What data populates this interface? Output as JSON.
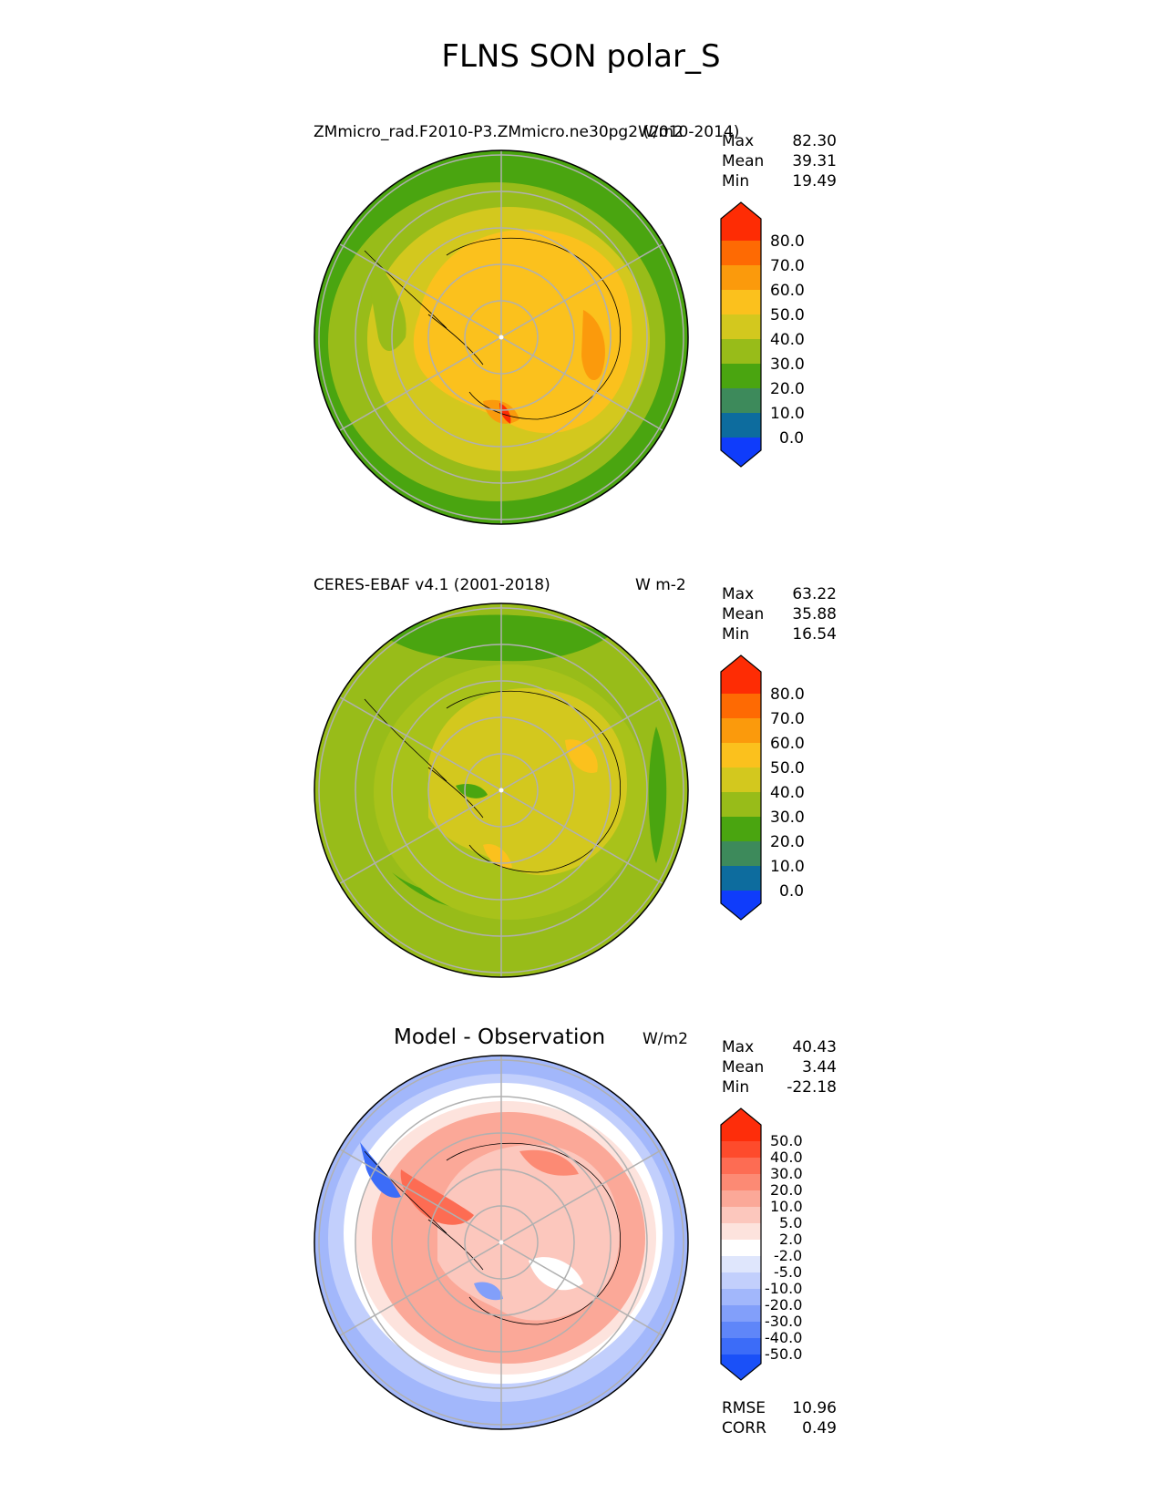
{
  "figure_title": "FLNS SON polar_S",
  "chart_data": [
    {
      "type": "heatmap",
      "projection": "south polar stereographic",
      "title": "ZMmicro_rad.F2010-P3.ZMmicro.ne30pg2 (2010-2014)",
      "units": "W/m2",
      "stats": {
        "max_label": "Max",
        "max": "82.30",
        "mean_label": "Mean",
        "mean": "39.31",
        "min_label": "Min",
        "min": "19.49"
      },
      "colorbar": {
        "ticks": [
          "80.0",
          "70.0",
          "60.0",
          "50.0",
          "40.0",
          "30.0",
          "20.0",
          "10.0",
          "0.0"
        ],
        "colors": [
          "#fe2c04",
          "#fe6a03",
          "#fb9a0c",
          "#fbc11d",
          "#d3c81e",
          "#98bc19",
          "#4aa510",
          "#3d8a5b",
          "#0d6c9e",
          "#0f3cfb"
        ],
        "extend": "both"
      }
    },
    {
      "type": "heatmap",
      "projection": "south polar stereographic",
      "title": "CERES-EBAF v4.1 (2001-2018)",
      "units": "W m-2",
      "stats": {
        "max_label": "Max",
        "max": "63.22",
        "mean_label": "Mean",
        "mean": "35.88",
        "min_label": "Min",
        "min": "16.54"
      },
      "colorbar": {
        "ticks": [
          "80.0",
          "70.0",
          "60.0",
          "50.0",
          "40.0",
          "30.0",
          "20.0",
          "10.0",
          "0.0"
        ],
        "colors": [
          "#fe2c04",
          "#fe6a03",
          "#fb9a0c",
          "#fbc11d",
          "#d3c81e",
          "#98bc19",
          "#4aa510",
          "#3d8a5b",
          "#0d6c9e",
          "#0f3cfb"
        ],
        "extend": "both"
      }
    },
    {
      "type": "heatmap",
      "projection": "south polar stereographic",
      "title": "Model - Observation",
      "units": "W/m2",
      "stats": {
        "max_label": "Max",
        "max": "40.43",
        "mean_label": "Mean",
        "mean": "3.44",
        "min_label": "Min",
        "min": "-22.18"
      },
      "colorbar": {
        "ticks": [
          "50.0",
          "40.0",
          "30.0",
          "20.0",
          "10.0",
          "5.0",
          "2.0",
          "-2.0",
          "-5.0",
          "-10.0",
          "-20.0",
          "-30.0",
          "-40.0",
          "-50.0"
        ],
        "colors": [
          "#fe2d0a",
          "#fe4b2c",
          "#fd6c53",
          "#fc8a74",
          "#fba898",
          "#fcc7bd",
          "#fde3dd",
          "#ffffff",
          "#dfe6fc",
          "#c2cffc",
          "#a2b7fb",
          "#829ffa",
          "#5f86f9",
          "#3c6cf8",
          "#1a50f8"
        ],
        "extend": "both"
      },
      "metrics": {
        "rmse_label": "RMSE",
        "rmse": "10.96",
        "corr_label": "CORR",
        "corr": "0.49"
      }
    }
  ]
}
